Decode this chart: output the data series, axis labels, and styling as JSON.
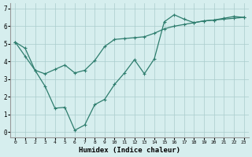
{
  "xlabel": "Humidex (Indice chaleur)",
  "ylabel": "",
  "background_color": "#d6eeee",
  "grid_color": "#aacccc",
  "line_color": "#2e7d6e",
  "xlim": [
    -0.5,
    23.5
  ],
  "ylim": [
    -0.3,
    7.3
  ],
  "xticks": [
    0,
    1,
    2,
    3,
    4,
    5,
    6,
    7,
    8,
    9,
    10,
    11,
    12,
    13,
    14,
    15,
    16,
    17,
    18,
    19,
    20,
    21,
    22,
    23
  ],
  "yticks": [
    0,
    1,
    2,
    3,
    4,
    5,
    6,
    7
  ],
  "line1_x": [
    0,
    1,
    2,
    3,
    4,
    5,
    6,
    7,
    8,
    9,
    10,
    11,
    12,
    13,
    14,
    15,
    16,
    17,
    18,
    19,
    20,
    21,
    22,
    23
  ],
  "line1_y": [
    5.1,
    4.3,
    3.5,
    2.6,
    1.35,
    1.4,
    0.1,
    0.4,
    1.55,
    1.85,
    2.7,
    3.35,
    4.1,
    3.3,
    4.15,
    6.25,
    6.65,
    6.4,
    6.2,
    6.3,
    6.35,
    6.45,
    6.55,
    6.5
  ],
  "line2_x": [
    0,
    1,
    2,
    3,
    4,
    5,
    6,
    7,
    8,
    9,
    10,
    11,
    12,
    13,
    14,
    15,
    16,
    17,
    18,
    19,
    20,
    21,
    22,
    23
  ],
  "line2_y": [
    5.1,
    4.75,
    3.5,
    3.3,
    3.55,
    3.8,
    3.35,
    3.5,
    4.05,
    4.85,
    5.25,
    5.3,
    5.35,
    5.4,
    5.6,
    5.85,
    6.0,
    6.1,
    6.2,
    6.3,
    6.35,
    6.4,
    6.45,
    6.5
  ]
}
